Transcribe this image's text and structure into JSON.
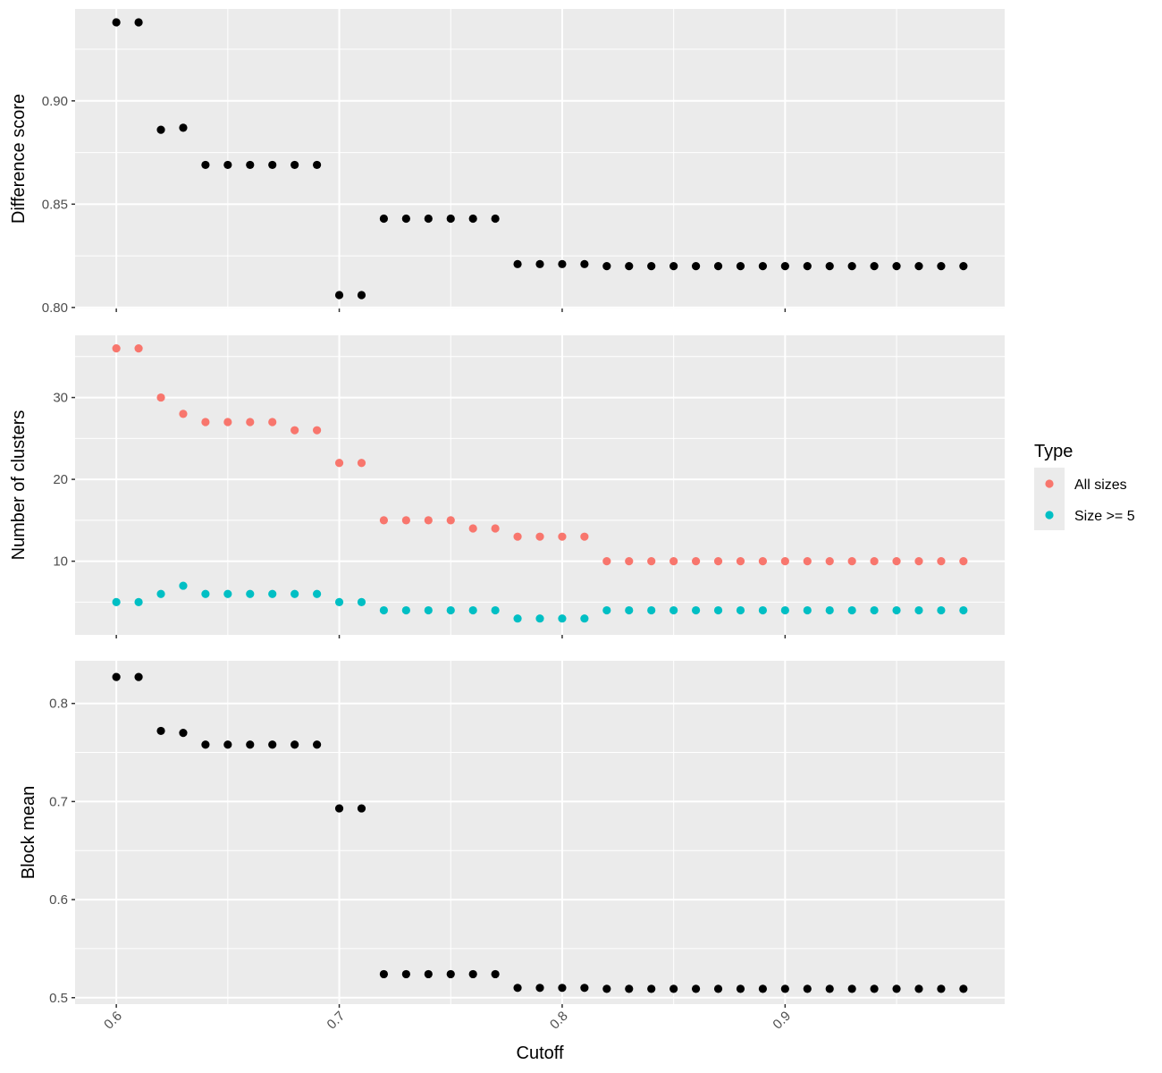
{
  "chart_data": {
    "type": "scatter",
    "xlabel": "Cutoff",
    "x_ticks": [
      "0.6",
      "0.7",
      "0.8",
      "0.9"
    ],
    "xlim": [
      0.5815,
      0.9985
    ],
    "x": [
      0.6,
      0.61,
      0.62,
      0.63,
      0.64,
      0.65,
      0.66,
      0.67,
      0.68,
      0.69,
      0.7,
      0.71,
      0.72,
      0.73,
      0.74,
      0.75,
      0.76,
      0.77,
      0.78,
      0.79,
      0.8,
      0.81,
      0.82,
      0.83,
      0.84,
      0.85,
      0.86,
      0.87,
      0.88,
      0.89,
      0.9,
      0.91,
      0.92,
      0.93,
      0.94,
      0.95,
      0.96,
      0.97,
      0.98
    ],
    "panels": [
      {
        "ylabel": "Difference score",
        "ylim": [
          0.7995,
          0.9445
        ],
        "y_ticks": [
          {
            "value": 0.8,
            "label": "0.80"
          },
          {
            "value": 0.85,
            "label": "0.85"
          },
          {
            "value": 0.9,
            "label": "0.90"
          }
        ],
        "series": [
          {
            "color": "#000000",
            "values": [
              0.938,
              0.938,
              0.886,
              0.887,
              0.869,
              0.869,
              0.869,
              0.869,
              0.869,
              0.869,
              0.806,
              0.806,
              0.843,
              0.843,
              0.843,
              0.843,
              0.843,
              0.843,
              0.821,
              0.821,
              0.821,
              0.821,
              0.82,
              0.82,
              0.82,
              0.82,
              0.82,
              0.82,
              0.82,
              0.82,
              0.82,
              0.82,
              0.82,
              0.82,
              0.82,
              0.82,
              0.82,
              0.82,
              0.82
            ]
          }
        ]
      },
      {
        "ylabel": "Number of clusters",
        "ylim": [
          1.0,
          37.6
        ],
        "y_ticks": [
          {
            "value": 10,
            "label": "10"
          },
          {
            "value": 20,
            "label": "20"
          },
          {
            "value": 30,
            "label": "30"
          }
        ],
        "series": [
          {
            "name": "All sizes",
            "color": "#F8766D",
            "values": [
              36,
              36,
              30,
              28,
              27,
              27,
              27,
              27,
              26,
              26,
              22,
              22,
              15,
              15,
              15,
              15,
              14,
              14,
              13,
              13,
              13,
              13,
              10,
              10,
              10,
              10,
              10,
              10,
              10,
              10,
              10,
              10,
              10,
              10,
              10,
              10,
              10,
              10,
              10
            ]
          },
          {
            "name": "Size >= 5",
            "color": "#00BFC4",
            "values": [
              5,
              5,
              6,
              7,
              6,
              6,
              6,
              6,
              6,
              6,
              5,
              5,
              4,
              4,
              4,
              4,
              4,
              4,
              3,
              3,
              3,
              3,
              4,
              4,
              4,
              4,
              4,
              4,
              4,
              4,
              4,
              4,
              4,
              4,
              4,
              4,
              4,
              4,
              4
            ]
          }
        ]
      },
      {
        "ylabel": "Block mean",
        "ylim": [
          0.4934,
          0.8435
        ],
        "y_ticks": [
          {
            "value": 0.5,
            "label": "0.5"
          },
          {
            "value": 0.6,
            "label": "0.6"
          },
          {
            "value": 0.7,
            "label": "0.7"
          },
          {
            "value": 0.8,
            "label": "0.8"
          }
        ],
        "series": [
          {
            "color": "#000000",
            "values": [
              0.827,
              0.827,
              0.772,
              0.77,
              0.758,
              0.758,
              0.758,
              0.758,
              0.758,
              0.758,
              0.693,
              0.693,
              0.524,
              0.524,
              0.524,
              0.524,
              0.524,
              0.524,
              0.51,
              0.51,
              0.51,
              0.51,
              0.509,
              0.509,
              0.509,
              0.509,
              0.509,
              0.509,
              0.509,
              0.509,
              0.509,
              0.509,
              0.509,
              0.509,
              0.509,
              0.509,
              0.509,
              0.509,
              0.509
            ]
          }
        ]
      }
    ],
    "legend": {
      "title": "Type",
      "position": "right",
      "entries": [
        {
          "label": "All sizes",
          "color": "#F8766D"
        },
        {
          "label": "Size >= 5",
          "color": "#00BFC4"
        }
      ]
    },
    "grid": true,
    "background": "#EBEBEB"
  }
}
